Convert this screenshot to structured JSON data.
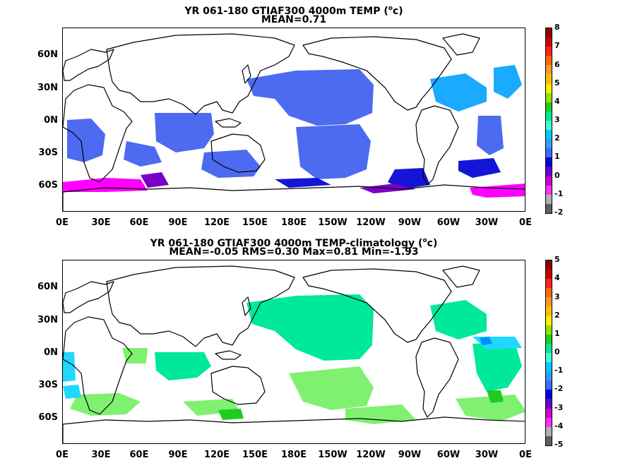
{
  "panels": [
    {
      "title_pre": "YR 061-180 GTIAF300 4000m TEMP (",
      "title_sup": "o",
      "title_post": "c)",
      "stats": "MEAN=0.71",
      "lat_labels": [
        "60N",
        "30N",
        "0N",
        "30S",
        "60S"
      ],
      "lon_labels": [
        "0E",
        "30E",
        "60E",
        "90E",
        "120E",
        "150E",
        "180E",
        "150W",
        "120W",
        "90W",
        "60W",
        "30W",
        "0E"
      ],
      "colorbar_labels": [
        "8",
        "7",
        "6",
        "5",
        "4",
        "3",
        "2",
        "1",
        "0",
        "-1",
        "-2"
      ]
    },
    {
      "title_pre": "YR 061-180 GTIAF300 4000m TEMP-climatology (",
      "title_sup": "o",
      "title_post": "c)",
      "stats": "MEAN=-0.05   RMS=0.30   Max=0.81   Min=-1.93",
      "lat_labels": [
        "60N",
        "30N",
        "0N",
        "30S",
        "60S"
      ],
      "lon_labels": [
        "0E",
        "30E",
        "60E",
        "90E",
        "120E",
        "150E",
        "180E",
        "150W",
        "120W",
        "90W",
        "60W",
        "30W",
        "0E"
      ],
      "colorbar_labels": [
        "5",
        "4",
        "3",
        "2",
        "1",
        "0",
        "-1",
        "-2",
        "-3",
        "-4",
        "-5"
      ]
    }
  ],
  "colorbar_colors": [
    "#8b0000",
    "#cc0000",
    "#ff2020",
    "#ff6a00",
    "#ff9a2a",
    "#ffc000",
    "#ffee00",
    "#8ce600",
    "#20cc20",
    "#00e890",
    "#40ffd0",
    "#00ccff",
    "#2fa0ff",
    "#3c6dff",
    "#0000e0",
    "#6600cc",
    "#cc00cc",
    "#ff30ff",
    "#b0b0b0",
    "#606060"
  ],
  "colors": {
    "temp_main": "#4d6bf0",
    "temp_warm": "#1aaaff",
    "temp_zero": "#1515d8",
    "temp_neg": "#7a00c8",
    "temp_cold": "#ff00ff",
    "diff_main": "#00e89a",
    "diff_pos": "#80f070",
    "diff_pos_strong": "#20cc20",
    "diff_neg": "#20d8ff",
    "diff_neg_strong": "#0090ff"
  }
}
